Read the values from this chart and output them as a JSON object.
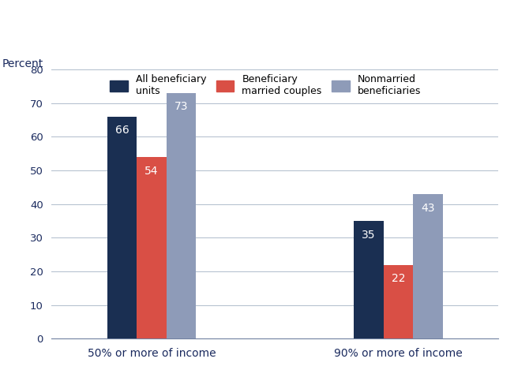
{
  "categories": [
    "50% or more of income",
    "90% or more of income"
  ],
  "series": [
    {
      "label": "All beneficiary\nunits",
      "values": [
        66,
        35
      ],
      "color": "#1a2f52"
    },
    {
      "label": "Beneficiary\nmarried couples",
      "values": [
        54,
        22
      ],
      "color": "#d94f45"
    },
    {
      "label": "Nonmarried\nbeneficiaries",
      "values": [
        73,
        43
      ],
      "color": "#8e9bb8"
    }
  ],
  "ylabel": "Percent",
  "ylim": [
    0,
    80
  ],
  "yticks": [
    0,
    10,
    20,
    30,
    40,
    50,
    60,
    70,
    80
  ],
  "bar_width": 0.18,
  "label_color": "#ffffff",
  "label_fontsize": 10,
  "legend_fontsize": 9,
  "axis_label_fontsize": 10,
  "tick_fontsize": 9.5,
  "background_color": "#ffffff",
  "grid_color": "#b0bccc"
}
